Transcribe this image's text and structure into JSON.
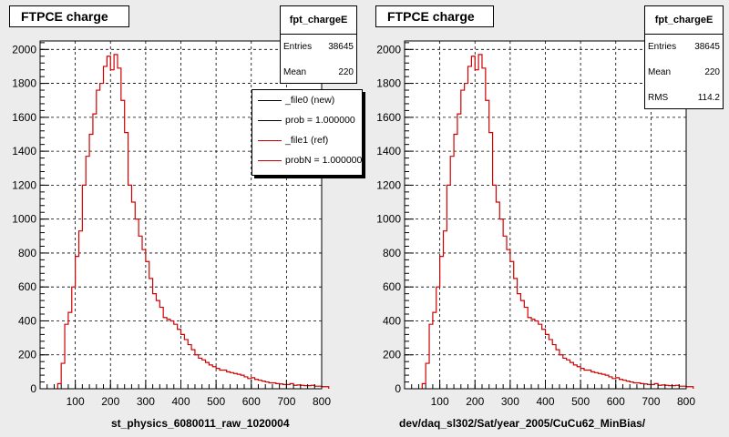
{
  "chart_data": [
    {
      "type": "histogram",
      "title": "FTPCE charge",
      "xlabel": "st_physics_6080011_raw_1020004",
      "xlim": [
        0,
        800
      ],
      "ylim": [
        0,
        2050
      ],
      "xticks": [
        100,
        200,
        300,
        400,
        500,
        600,
        700,
        800
      ],
      "yticks": [
        0,
        200,
        400,
        600,
        800,
        1000,
        1200,
        1400,
        1600,
        1800,
        2000
      ],
      "grid": true,
      "bin_width": 10,
      "bin_start": 50,
      "series": [
        {
          "values": [
            30,
            150,
            380,
            450,
            600,
            780,
            930,
            1200,
            1370,
            1500,
            1620,
            1760,
            1800,
            1900,
            1960,
            1880,
            1970,
            1890,
            1700,
            1510,
            1200,
            1100,
            1000,
            900,
            820,
            750,
            650,
            560,
            520,
            480,
            420,
            410,
            400,
            380,
            350,
            320,
            290,
            260,
            230,
            200,
            180,
            170,
            155,
            140,
            130,
            120,
            110,
            110,
            100,
            95,
            90,
            85,
            80,
            70,
            60,
            65,
            55,
            50,
            45,
            40,
            35,
            35,
            30,
            28,
            25,
            25,
            30,
            20,
            22,
            20,
            18,
            18,
            20,
            15,
            15,
            12,
            12
          ]
        }
      ],
      "stats": {
        "name": "fpt_chargeE",
        "rows": [
          {
            "label": "Entries",
            "value": "38645"
          },
          {
            "label": "Mean",
            "value": "220"
          }
        ]
      },
      "legend": [
        {
          "label": "_file0 (new)",
          "color": "#000000"
        },
        {
          "label": "prob = 1.000000",
          "color": "#000000"
        },
        {
          "label": "_file1 (ref)",
          "color": "#d00000"
        },
        {
          "label": "probN = 1.000000",
          "color": "#d00000"
        }
      ]
    },
    {
      "type": "histogram",
      "title": "FTPCE charge",
      "xlabel": "dev/daq_sl302/Sat/year_2005/CuCu62_MinBias/",
      "xlim": [
        0,
        800
      ],
      "ylim": [
        0,
        2050
      ],
      "xticks": [
        100,
        200,
        300,
        400,
        500,
        600,
        700,
        800
      ],
      "yticks": [
        0,
        200,
        400,
        600,
        800,
        1000,
        1200,
        1400,
        1600,
        1800,
        2000
      ],
      "grid": true,
      "bin_width": 10,
      "bin_start": 50,
      "series": [
        {
          "values": [
            30,
            150,
            380,
            450,
            600,
            780,
            930,
            1200,
            1370,
            1500,
            1620,
            1760,
            1800,
            1900,
            1960,
            1880,
            1970,
            1890,
            1700,
            1510,
            1200,
            1100,
            1000,
            900,
            820,
            750,
            650,
            560,
            520,
            480,
            420,
            410,
            400,
            380,
            350,
            320,
            290,
            260,
            230,
            200,
            180,
            170,
            155,
            140,
            130,
            120,
            110,
            110,
            100,
            95,
            90,
            85,
            80,
            70,
            60,
            65,
            55,
            50,
            45,
            40,
            35,
            35,
            30,
            28,
            25,
            25,
            30,
            20,
            22,
            20,
            18,
            18,
            20,
            15,
            15,
            12,
            12
          ]
        }
      ],
      "stats": {
        "name": "fpt_chargeE",
        "rows": [
          {
            "label": "Entries",
            "value": "38645"
          },
          {
            "label": "Mean",
            "value": "220"
          },
          {
            "label": "RMS",
            "value": "114.2"
          }
        ]
      }
    }
  ],
  "colors": {
    "histogram": "#d00000",
    "frame": "#000000",
    "grid": "#000000"
  }
}
